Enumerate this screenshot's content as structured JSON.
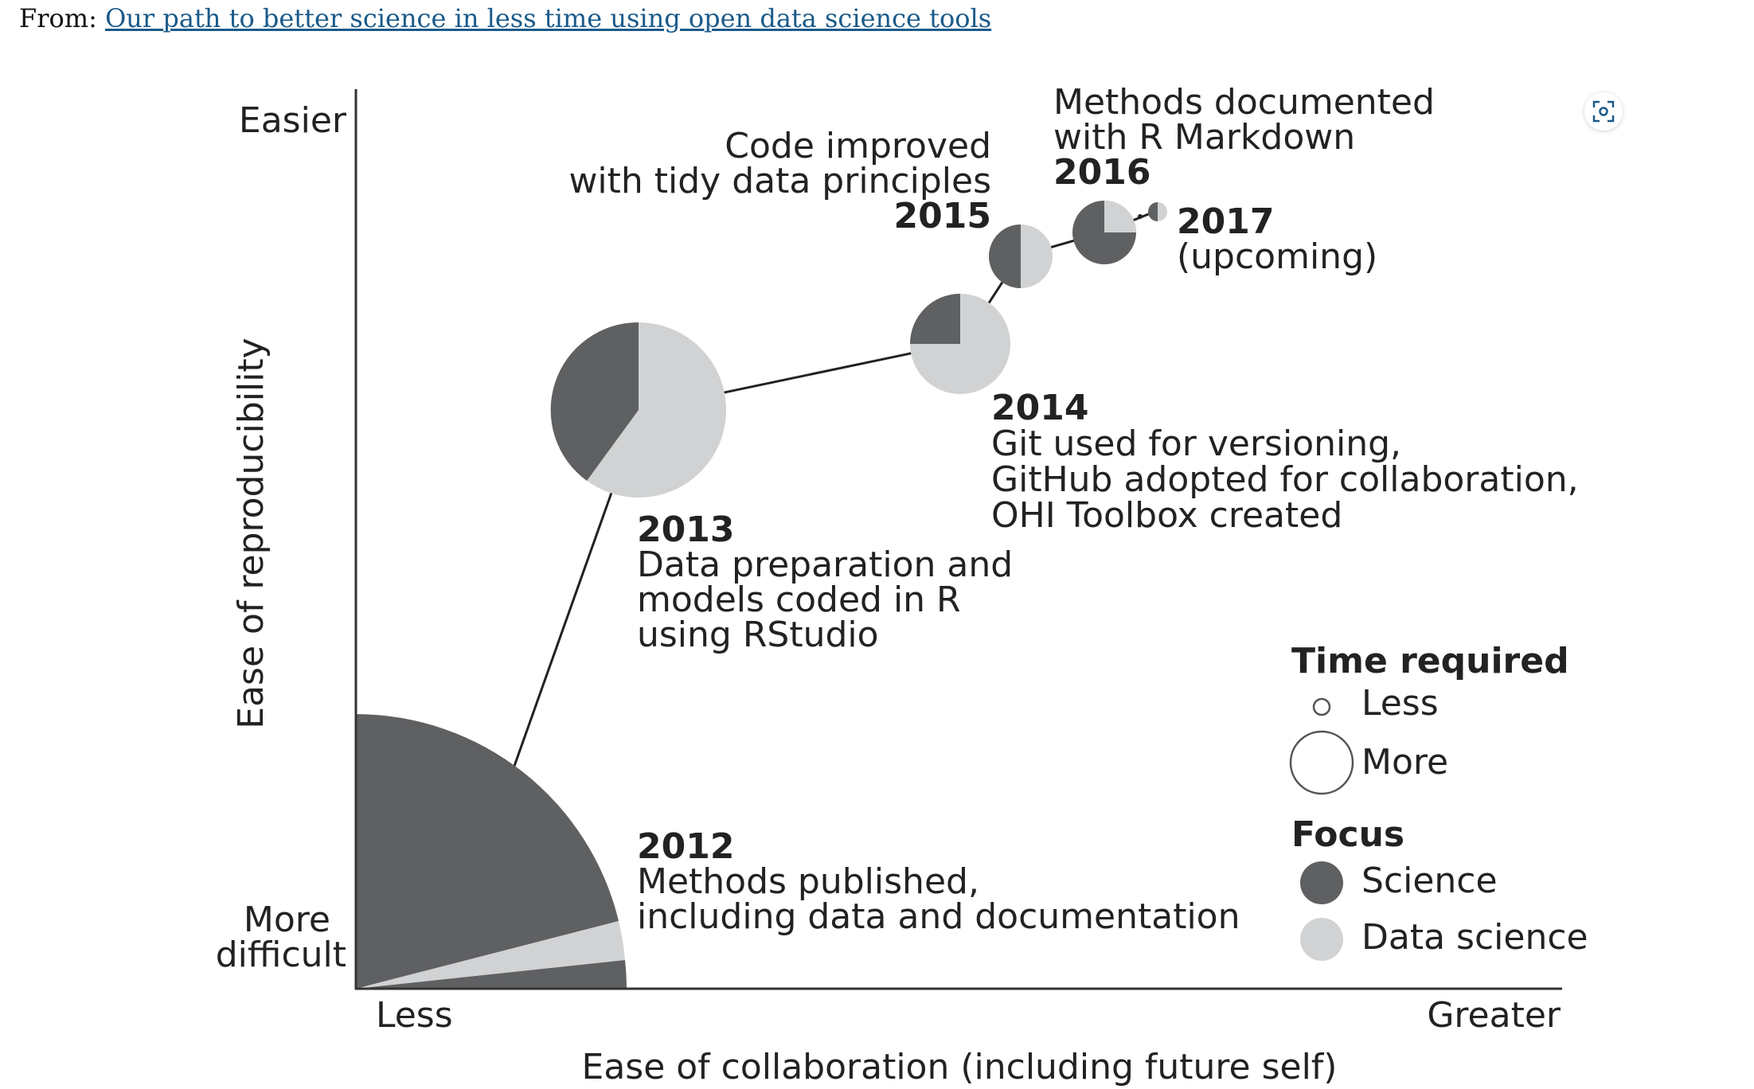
{
  "source": {
    "prefix": "From:",
    "link_text": "Our path to better science in less time using open data science tools"
  },
  "axes": {
    "x_label": "Ease of collaboration (including future self)",
    "x_low": "Less",
    "x_high": "Greater",
    "y_label": "Ease of reproducibility",
    "y_high": "Easier",
    "y_low_line1": "More",
    "y_low_line2": "difficult"
  },
  "milestones": [
    {
      "year": "2012",
      "lines": [
        "Methods published,",
        "including data and documentation"
      ],
      "time_required": "most",
      "science_fraction": 0.95
    },
    {
      "year": "2013",
      "lines": [
        "Data preparation and",
        "models coded in R",
        "using RStudio"
      ],
      "time_required": "large",
      "science_fraction": 0.4
    },
    {
      "year": "2014",
      "lines": [
        "Git used for versioning,",
        "GitHub adopted for collaboration,",
        "OHI Toolbox created"
      ],
      "time_required": "medium",
      "science_fraction": 0.25
    },
    {
      "year": "2015",
      "lines": [
        "Code improved",
        "with tidy data principles"
      ],
      "time_required": "small",
      "science_fraction": 0.5
    },
    {
      "year": "2016",
      "lines": [
        "Methods documented",
        "with R Markdown"
      ],
      "time_required": "small",
      "science_fraction": 0.75
    },
    {
      "year": "2017",
      "lines": [
        "(upcoming)"
      ],
      "time_required": "smallest",
      "science_fraction": 0.5
    }
  ],
  "legend": {
    "time_title": "Time required",
    "time_less": "Less",
    "time_more": "More",
    "focus_title": "Focus",
    "focus_science": "Science",
    "focus_data_science": "Data science"
  },
  "colors": {
    "science": "#5f6062",
    "data_science": "#d1d2d3",
    "axis": "#333333",
    "link": "#1a5a8a"
  },
  "icons": {
    "expand": "expand-icon"
  }
}
